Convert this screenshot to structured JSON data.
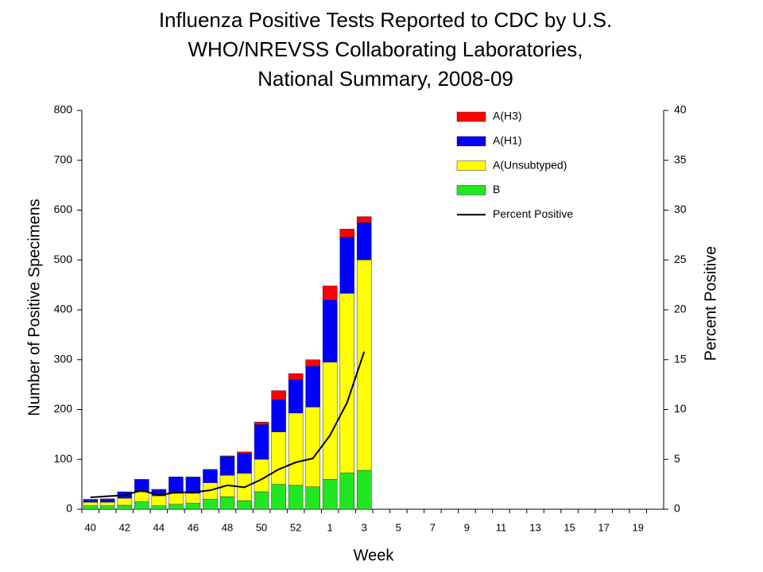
{
  "chart_data": {
    "type": "bar",
    "title": [
      "Influenza Positive Tests Reported to CDC by U.S.",
      "WHO/NREVSS Collaborating Laboratories,",
      "National Summary, 2008-09"
    ],
    "x_label": "Week",
    "y_label": "Number of Positive Specimens",
    "y2_label": "Percent Positive",
    "categories": [
      "40",
      null,
      "42",
      null,
      "44",
      null,
      "46",
      null,
      "48",
      null,
      "50",
      null,
      "52",
      null,
      "1",
      null,
      "3",
      null,
      "5",
      null,
      "7",
      null,
      "9",
      null,
      "11",
      null,
      "13",
      null,
      "15",
      null,
      "17",
      null,
      "19",
      null
    ],
    "stacked": true,
    "series": [
      {
        "name": "B",
        "color": "#22e622",
        "values": [
          7,
          7,
          8,
          15,
          7,
          10,
          12,
          20,
          25,
          17,
          35,
          50,
          48,
          45,
          60,
          73,
          78,
          null,
          null,
          null,
          null,
          null,
          null,
          null,
          null,
          null,
          null,
          null,
          null,
          null,
          null,
          null,
          null,
          null
        ]
      },
      {
        "name": "A(Unsubtyped)",
        "color": "#ffff00",
        "values": [
          7,
          7,
          14,
          20,
          20,
          22,
          20,
          33,
          43,
          55,
          65,
          105,
          145,
          160,
          235,
          360,
          422,
          null,
          null,
          null,
          null,
          null,
          null,
          null,
          null,
          null,
          null,
          null,
          null,
          null,
          null,
          null,
          null,
          null
        ]
      },
      {
        "name": "A(H1)",
        "color": "#0000ff",
        "values": [
          5,
          6,
          13,
          25,
          12,
          33,
          32,
          27,
          38,
          40,
          70,
          65,
          67,
          82,
          125,
          113,
          75,
          null,
          null,
          null,
          null,
          null,
          null,
          null,
          null,
          null,
          null,
          null,
          null,
          null,
          null,
          null,
          null,
          null
        ]
      },
      {
        "name": "A(H3)",
        "color": "#ff0000",
        "values": [
          1,
          1,
          0,
          0,
          1,
          0,
          1,
          0,
          1,
          3,
          5,
          18,
          12,
          13,
          28,
          16,
          12,
          null,
          null,
          null,
          null,
          null,
          null,
          null,
          null,
          null,
          null,
          null,
          null,
          null,
          null,
          null,
          null,
          null
        ]
      },
      {
        "name": "Percent Positive",
        "color": "#000000",
        "type": "line",
        "axis": "y2",
        "values": [
          1.2,
          1.3,
          1.4,
          1.9,
          1.4,
          1.7,
          1.7,
          1.9,
          2.4,
          2.2,
          3.0,
          4.0,
          4.7,
          5.1,
          7.4,
          10.7,
          15.8,
          null,
          null,
          null,
          null,
          null,
          null,
          null,
          null,
          null,
          null,
          null,
          null,
          null,
          null,
          null,
          null,
          null
        ]
      }
    ],
    "ylim": [
      0,
      800
    ],
    "yticks": [
      0,
      100,
      200,
      300,
      400,
      500,
      600,
      700,
      800
    ],
    "y2lim": [
      0,
      40
    ],
    "y2ticks": [
      0,
      5,
      10,
      15,
      20,
      25,
      30,
      35,
      40
    ],
    "legend": "upper right"
  }
}
